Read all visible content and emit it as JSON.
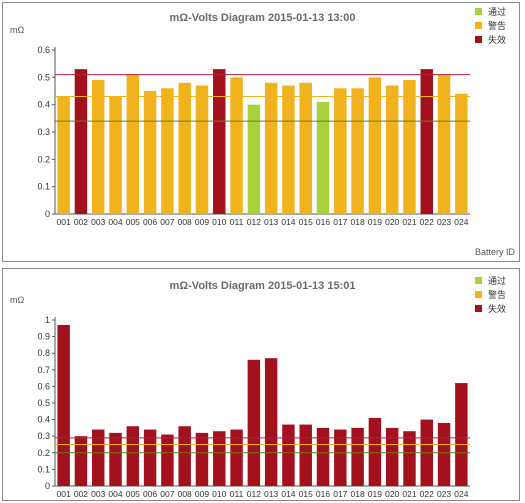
{
  "charts": [
    {
      "title": "mΩ-Volts Diagram 2015-01-13 13:00",
      "ylabel": "mΩ",
      "xlabel": "Battery ID",
      "legend": [
        {
          "label": "通过",
          "color": "#a8d23a"
        },
        {
          "label": "警告",
          "color": "#f0b21d"
        },
        {
          "label": "失效",
          "color": "#a3111e"
        }
      ]
    },
    {
      "title": "mΩ-Volts Diagram 2015-01-13 15:01",
      "ylabel": "mΩ",
      "xlabel": "",
      "legend": [
        {
          "label": "通过",
          "color": "#a8d23a"
        },
        {
          "label": "警告",
          "color": "#f0b21d"
        },
        {
          "label": "失效",
          "color": "#a3111e"
        }
      ]
    }
  ],
  "chart_data": [
    {
      "type": "bar",
      "title": "mΩ-Volts Diagram 2015-01-13 13:00",
      "xlabel": "Battery ID",
      "ylabel": "mΩ",
      "ylim": [
        0,
        0.6
      ],
      "yticks": [
        0,
        0.1,
        0.2,
        0.3,
        0.4,
        0.5,
        0.6
      ],
      "ytick_labels": [
        "0",
        "0.1",
        "0.2",
        "0.3",
        "0.4",
        "0.5",
        "0.6"
      ],
      "grid": false,
      "legend_position": "top-right",
      "categories": [
        "001",
        "002",
        "003",
        "004",
        "005",
        "006",
        "007",
        "008",
        "009",
        "010",
        "011",
        "012",
        "013",
        "014",
        "015",
        "016",
        "017",
        "018",
        "019",
        "020",
        "021",
        "022",
        "023",
        "024"
      ],
      "values": [
        0.43,
        0.53,
        0.49,
        0.43,
        0.51,
        0.45,
        0.46,
        0.48,
        0.47,
        0.53,
        0.5,
        0.4,
        0.48,
        0.47,
        0.48,
        0.41,
        0.46,
        0.46,
        0.5,
        0.47,
        0.49,
        0.53,
        0.51,
        0.44
      ],
      "status": [
        "warn",
        "fail",
        "warn",
        "warn",
        "warn",
        "warn",
        "warn",
        "warn",
        "warn",
        "fail",
        "warn",
        "pass",
        "warn",
        "warn",
        "warn",
        "pass",
        "warn",
        "warn",
        "warn",
        "warn",
        "warn",
        "fail",
        "warn",
        "warn"
      ],
      "threshold_lines": [
        {
          "value": 0.51,
          "color": "#b0213a"
        },
        {
          "value": 0.43,
          "color": "#f0b21d"
        },
        {
          "value": 0.34,
          "color": "#6b7a1f"
        }
      ]
    },
    {
      "type": "bar",
      "title": "mΩ-Volts Diagram 2015-01-13 15:01",
      "xlabel": "",
      "ylabel": "mΩ",
      "ylim": [
        0,
        1
      ],
      "yticks": [
        0,
        0.1,
        0.2,
        0.3,
        0.4,
        0.5,
        0.6,
        0.7,
        0.8,
        0.9,
        1
      ],
      "ytick_labels": [
        "0",
        "0.1",
        "0.2",
        "0.3",
        "0.4",
        "0.5",
        "0.6",
        "0.7",
        "0.8",
        "0.9",
        "1"
      ],
      "grid": false,
      "legend_position": "top-right",
      "categories": [
        "001",
        "002",
        "003",
        "004",
        "005",
        "006",
        "007",
        "008",
        "009",
        "010",
        "011",
        "012",
        "013",
        "014",
        "015",
        "016",
        "017",
        "018",
        "019",
        "020",
        "021",
        "022",
        "023",
        "024"
      ],
      "values": [
        0.97,
        0.3,
        0.34,
        0.32,
        0.36,
        0.34,
        0.31,
        0.36,
        0.32,
        0.33,
        0.34,
        0.76,
        0.77,
        0.37,
        0.37,
        0.35,
        0.34,
        0.35,
        0.41,
        0.35,
        0.33,
        0.4,
        0.38,
        0.62
      ],
      "status": [
        "fail",
        "fail",
        "fail",
        "fail",
        "fail",
        "fail",
        "fail",
        "fail",
        "fail",
        "fail",
        "fail",
        "fail",
        "fail",
        "fail",
        "fail",
        "fail",
        "fail",
        "fail",
        "fail",
        "fail",
        "fail",
        "fail",
        "fail",
        "fail"
      ],
      "threshold_lines": [
        {
          "value": 0.29,
          "color": "#b0213a"
        },
        {
          "value": 0.25,
          "color": "#f0b21d"
        },
        {
          "value": 0.2,
          "color": "#6b7a1f"
        }
      ]
    }
  ]
}
